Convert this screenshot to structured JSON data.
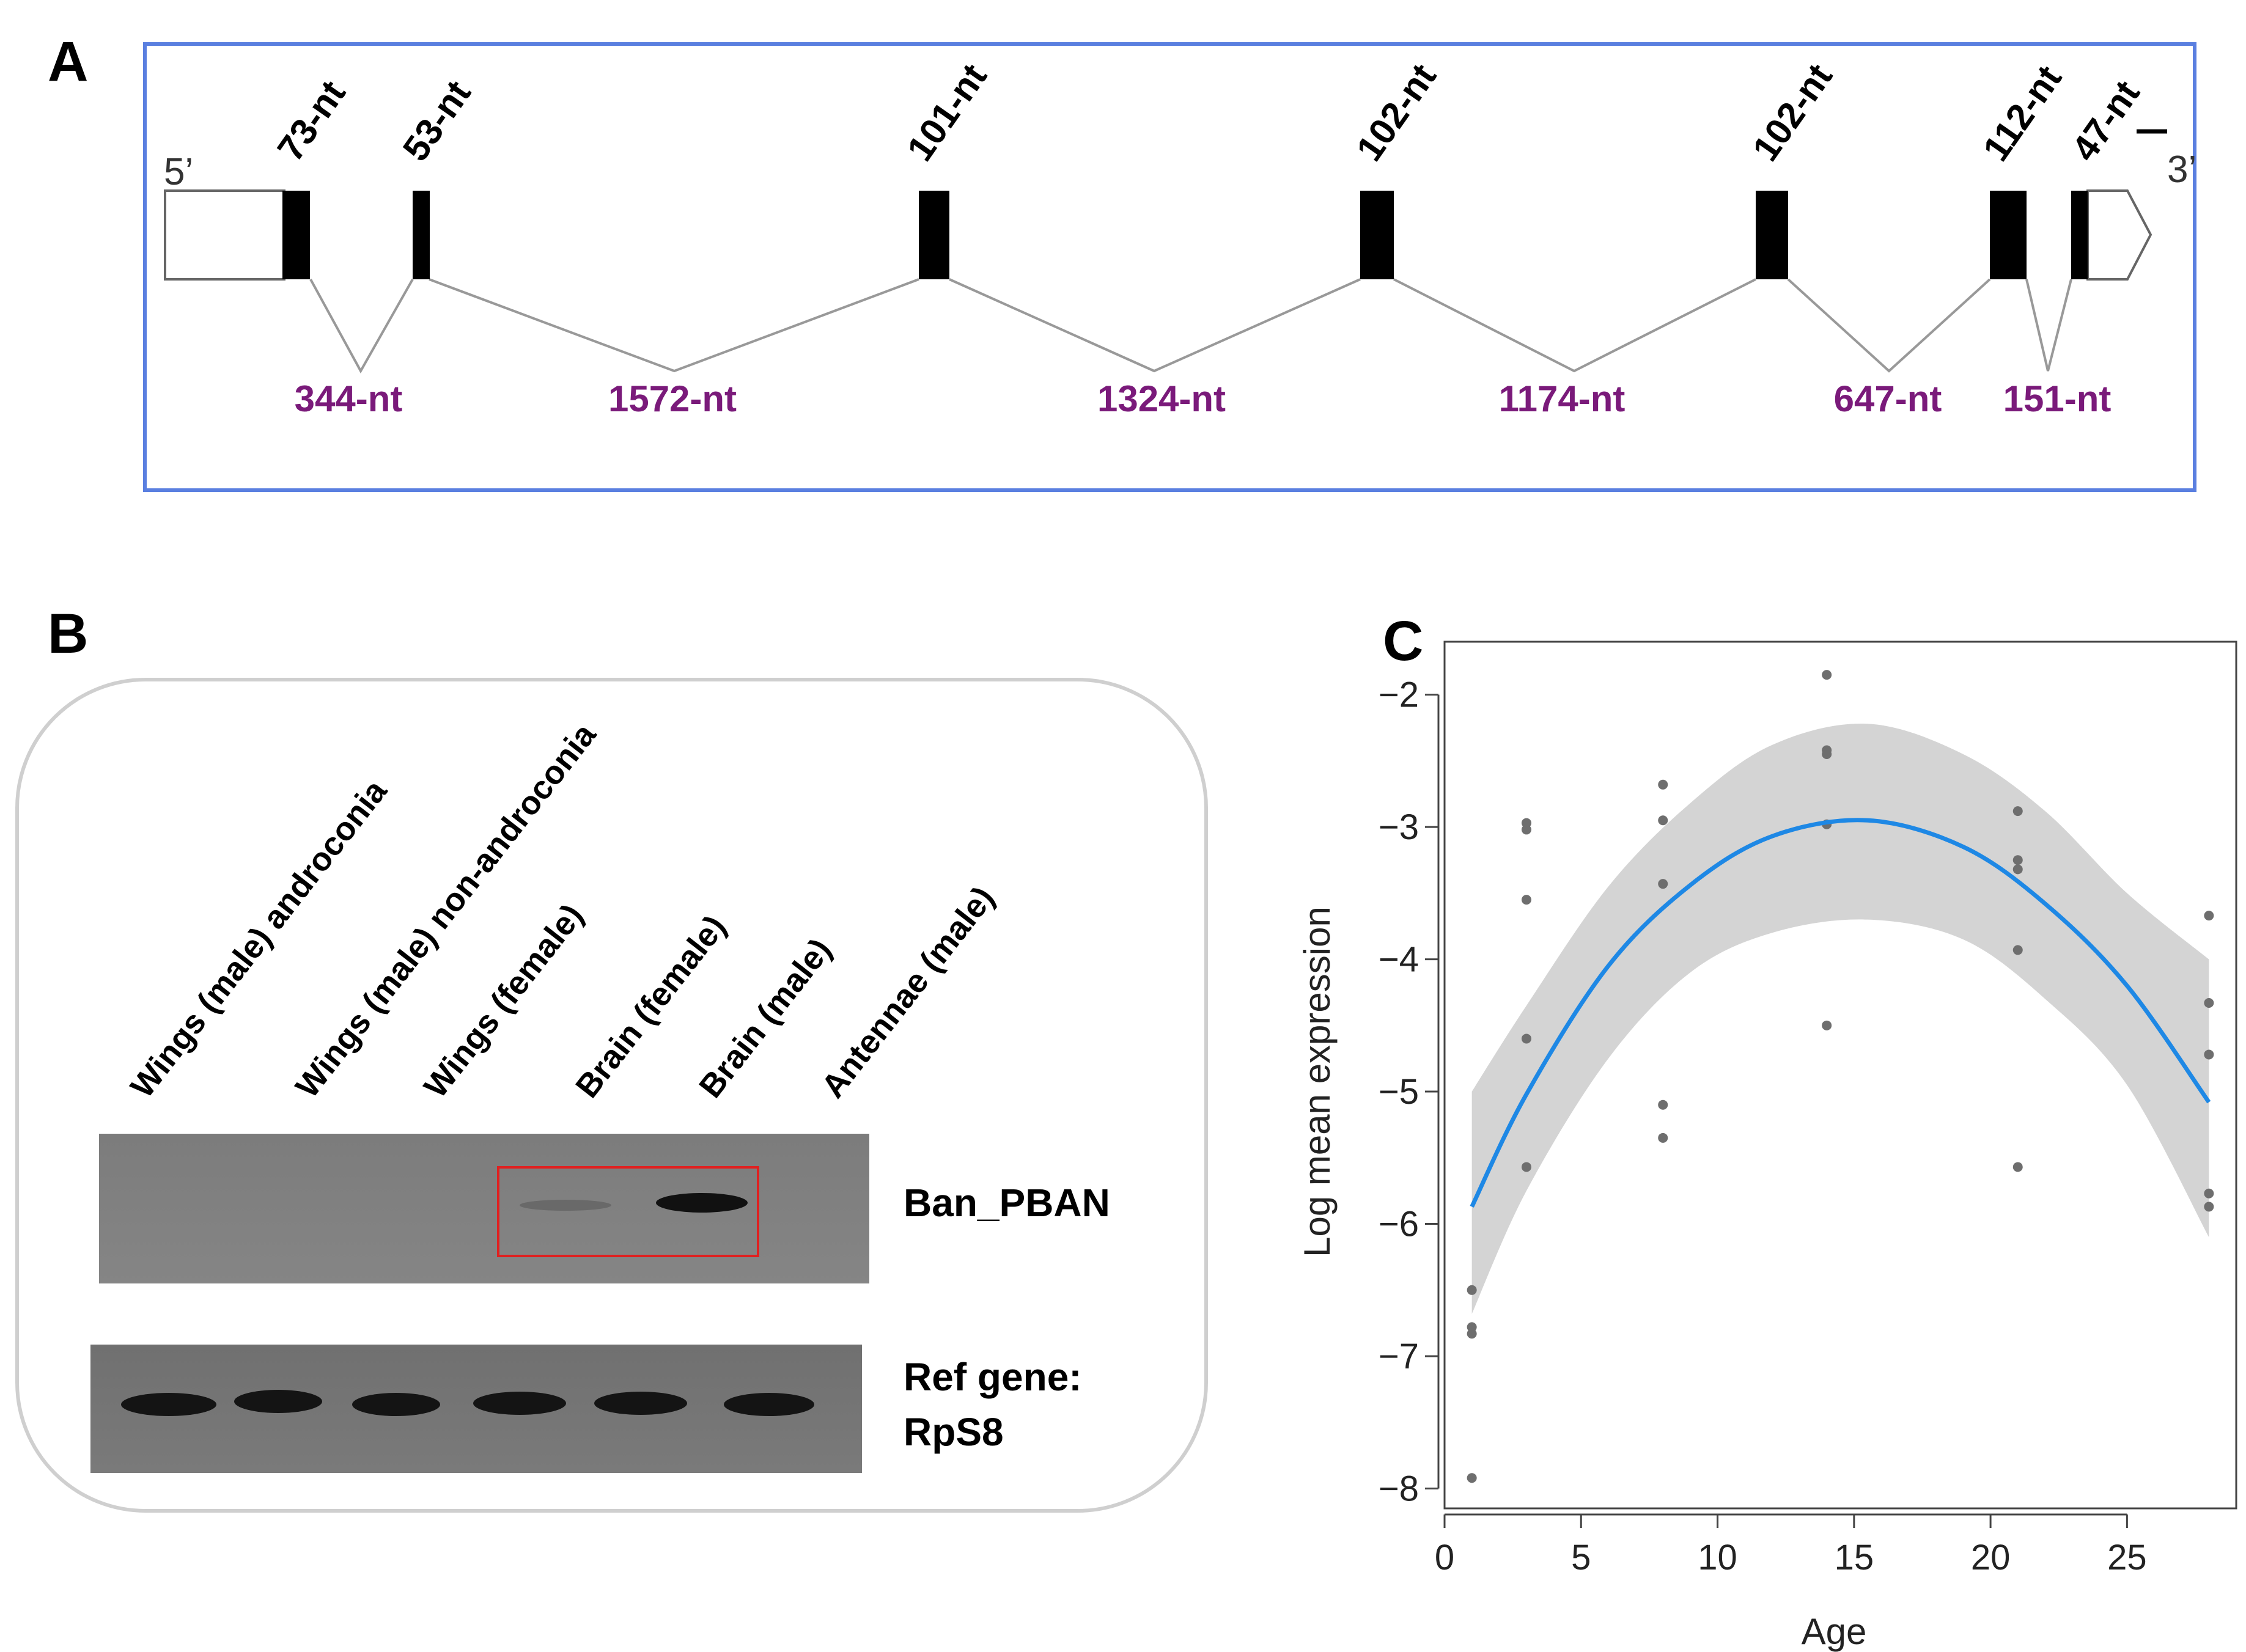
{
  "panel_a": {
    "letter": "A",
    "five_prime": "5’",
    "three_prime": "3’",
    "exons": [
      "73-nt",
      "53-nt",
      "101-nt",
      "102-nt",
      "102-nt",
      "112-nt",
      "47-nt"
    ],
    "introns": [
      "344-nt",
      "1572-nt",
      "1324-nt",
      "1174-nt",
      "647-nt",
      "151-nt"
    ],
    "intron_color": "#7a1a7a"
  },
  "panel_b": {
    "letter": "B",
    "lanes": [
      "Wings (male) androconia",
      "Wings (male) non-androconia",
      "Wings (female)",
      "Brain (female)",
      "Brain (male)",
      "Antennae  (male)"
    ],
    "gel_top_label": "Ban_PBAN",
    "gel_bottom_label_1": "Ref gene:",
    "gel_bottom_label_2": "RpS8",
    "highlight_color": "#e02020"
  },
  "panel_c": {
    "letter": "C"
  },
  "chart_data": {
    "type": "scatter",
    "title": "",
    "xlabel": "Age",
    "ylabel": "Log mean expression",
    "xlim": [
      0,
      29
    ],
    "ylim": [
      -8.15,
      -1.6
    ],
    "xticks": [
      0,
      5,
      10,
      15,
      20,
      25
    ],
    "yticks": [
      -2,
      -3,
      -4,
      -5,
      -6,
      -7,
      -8
    ],
    "grid": false,
    "series": [
      {
        "name": "samples",
        "points": [
          [
            1,
            -6.5
          ],
          [
            1,
            -6.78
          ],
          [
            1,
            -6.83
          ],
          [
            1,
            -7.92
          ],
          [
            3,
            -2.97
          ],
          [
            3,
            -3.02
          ],
          [
            3,
            -3.55
          ],
          [
            3,
            -4.6
          ],
          [
            3,
            -5.57
          ],
          [
            8,
            -2.68
          ],
          [
            8,
            -2.95
          ],
          [
            8,
            -3.43
          ],
          [
            8,
            -5.1
          ],
          [
            8,
            -5.35
          ],
          [
            14,
            -1.85
          ],
          [
            14,
            -2.42
          ],
          [
            14,
            -2.45
          ],
          [
            14,
            -2.98
          ],
          [
            14,
            -4.5
          ],
          [
            21,
            -2.88
          ],
          [
            21,
            -3.25
          ],
          [
            21,
            -3.32
          ],
          [
            21,
            -3.93
          ],
          [
            21,
            -5.57
          ],
          [
            28,
            -3.67
          ],
          [
            28,
            -4.33
          ],
          [
            28,
            -4.72
          ],
          [
            28,
            -5.77
          ],
          [
            28,
            -5.87
          ]
        ]
      },
      {
        "name": "fit",
        "points": [
          [
            1,
            -5.87
          ],
          [
            3,
            -5.02
          ],
          [
            6,
            -4.05
          ],
          [
            9,
            -3.44
          ],
          [
            12,
            -3.07
          ],
          [
            15.5,
            -2.95
          ],
          [
            19,
            -3.15
          ],
          [
            22,
            -3.58
          ],
          [
            25,
            -4.2
          ],
          [
            28,
            -5.08
          ]
        ],
        "band_upper": [
          [
            1,
            -5.0
          ],
          [
            3,
            -4.35
          ],
          [
            6,
            -3.45
          ],
          [
            9,
            -2.82
          ],
          [
            12,
            -2.38
          ],
          [
            15.5,
            -2.22
          ],
          [
            19,
            -2.45
          ],
          [
            22,
            -2.88
          ],
          [
            25,
            -3.5
          ],
          [
            28,
            -4.0
          ]
        ],
        "band_lower": [
          [
            1,
            -6.68
          ],
          [
            3,
            -5.75
          ],
          [
            6,
            -4.75
          ],
          [
            9,
            -4.1
          ],
          [
            12,
            -3.8
          ],
          [
            15.5,
            -3.7
          ],
          [
            19,
            -3.85
          ],
          [
            22,
            -4.3
          ],
          [
            25,
            -4.95
          ],
          [
            28,
            -6.1
          ]
        ]
      }
    ]
  },
  "colors": {
    "frame_blue": "#5a7fe0",
    "fit_line": "#1e88e5",
    "band": "#d4d4d4",
    "point": "#6e6e6e"
  }
}
